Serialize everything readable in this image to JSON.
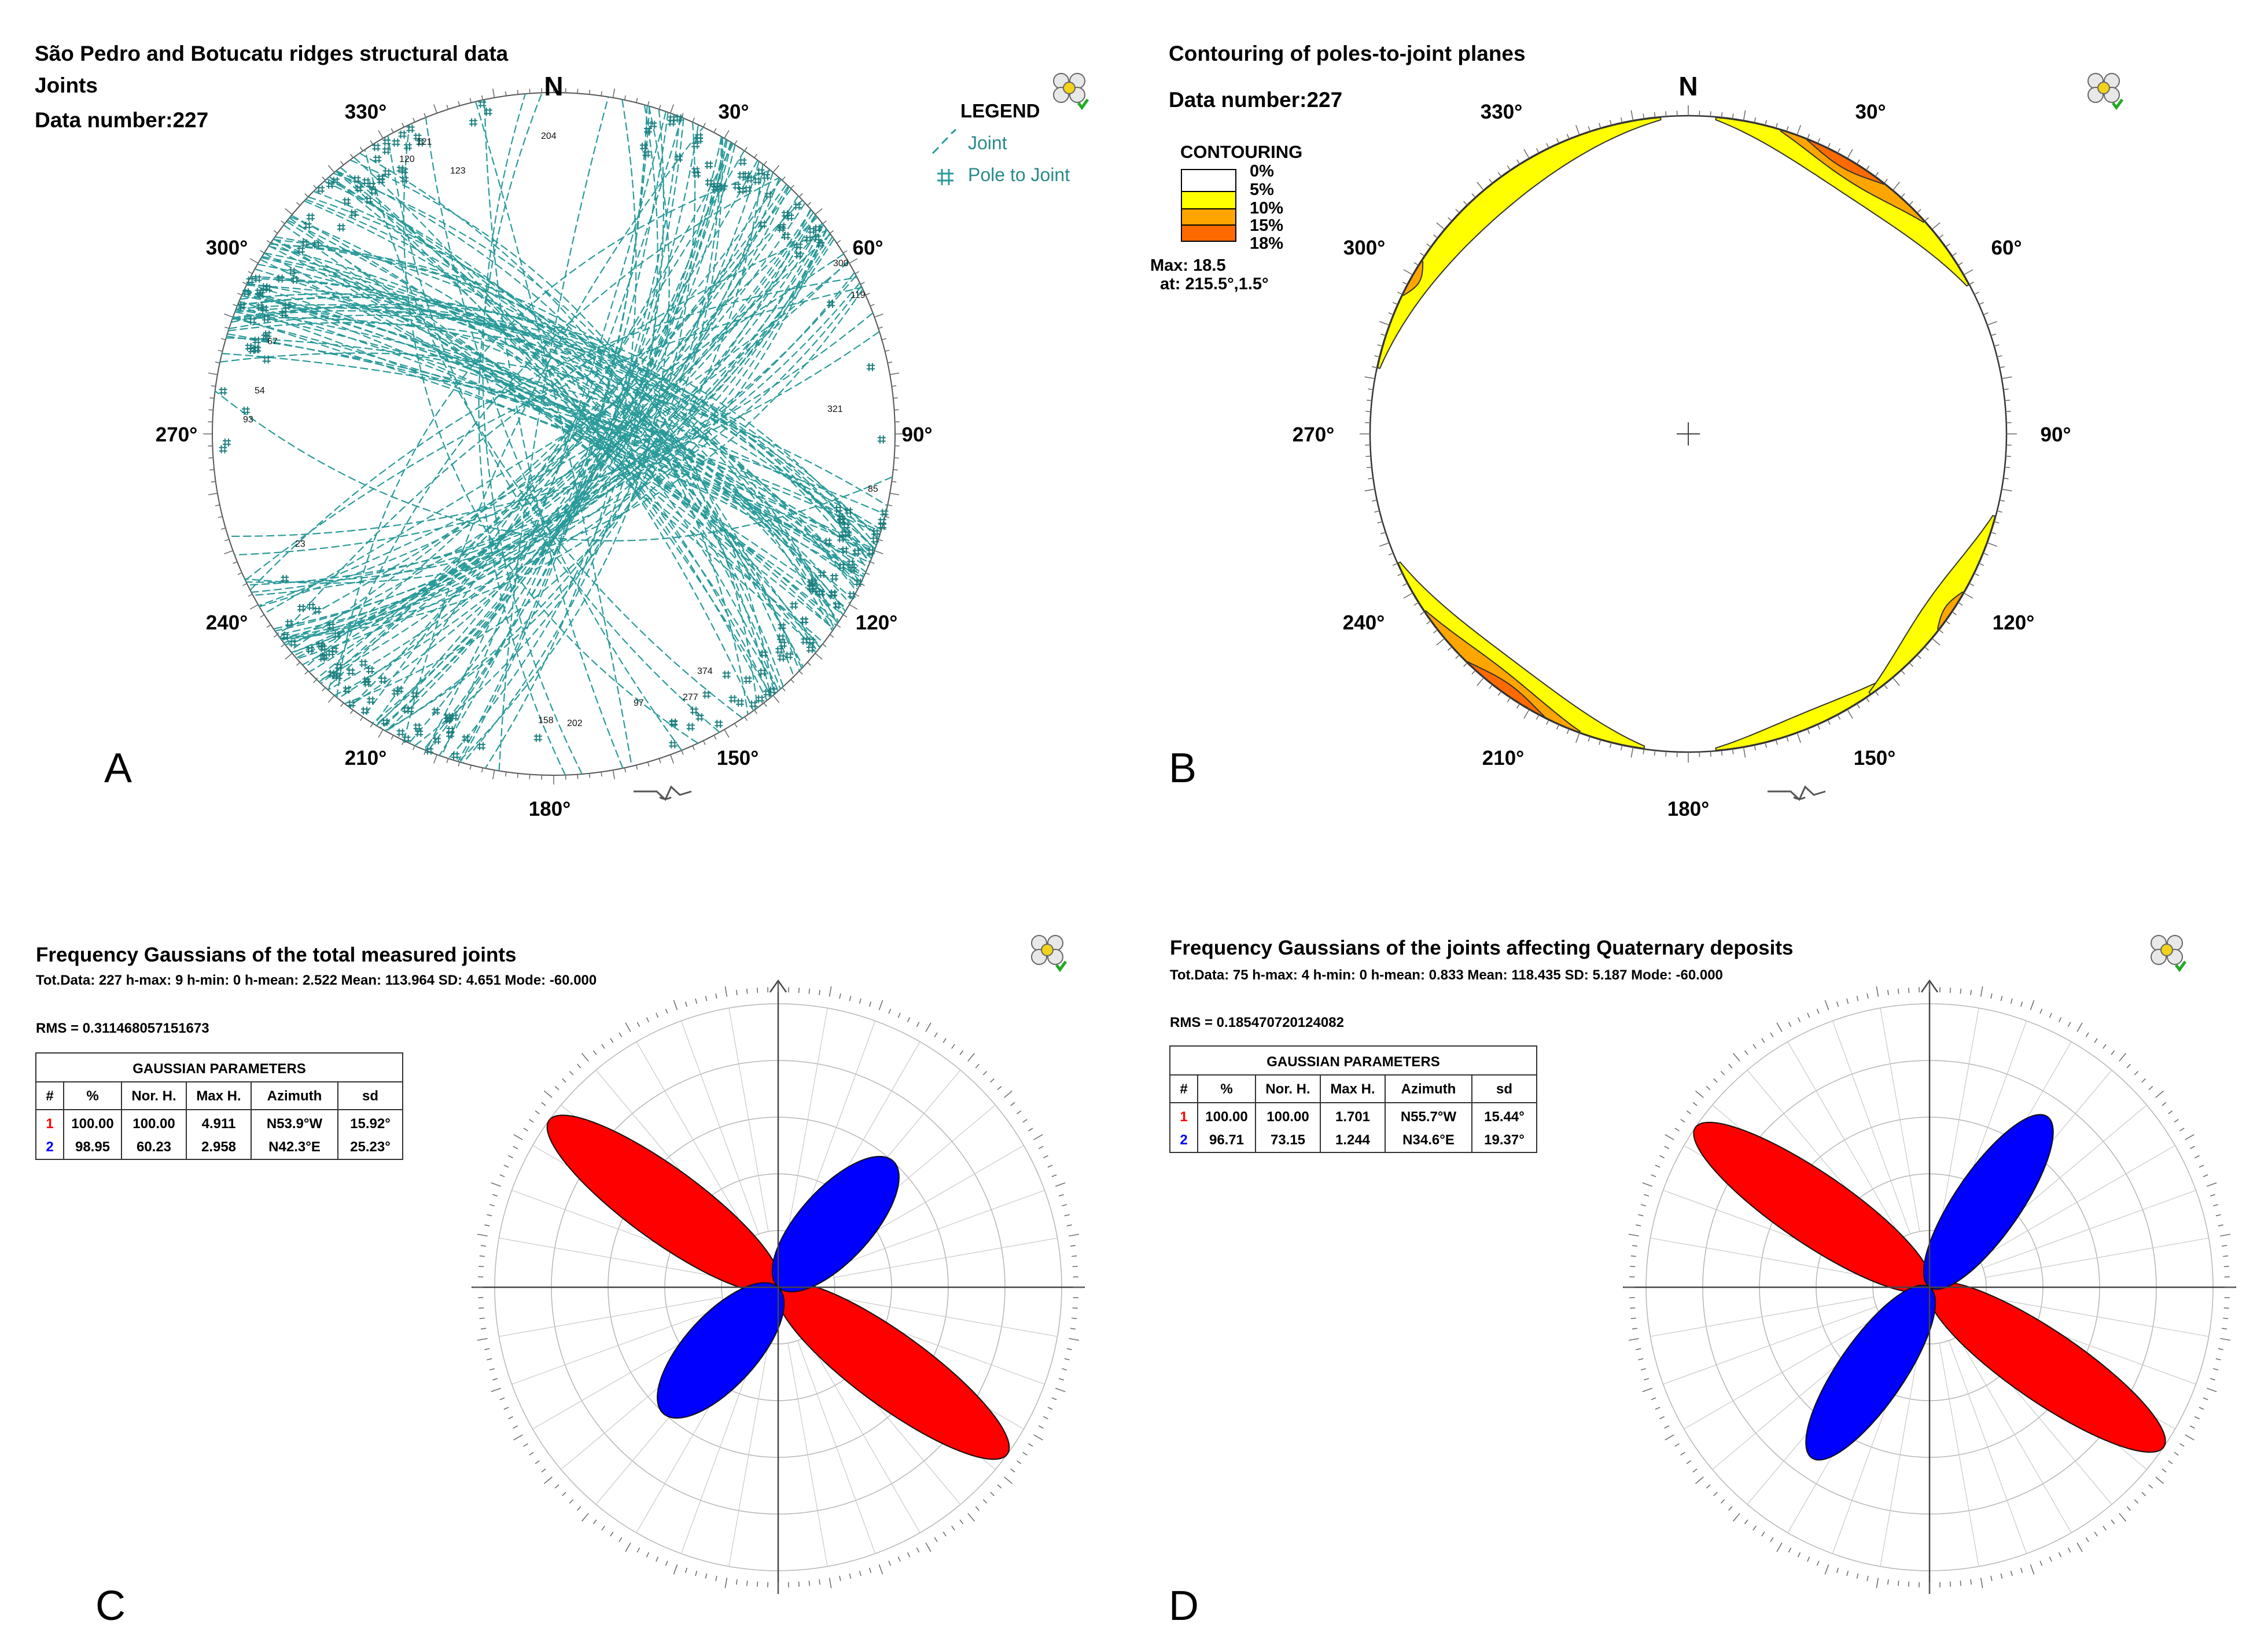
{
  "panels": {
    "A": {
      "letter": "A",
      "title": "São Pedro and Botucatu ridges structural data",
      "subtitle": "Joints",
      "data_number": "Data number:227",
      "north": "N",
      "directions": [
        "330°",
        "30°",
        "60°",
        "300°",
        "270°",
        "90°",
        "240°",
        "120°",
        "210°",
        "150°",
        "180°"
      ],
      "legend_title": "LEGEND",
      "legend_items": [
        "Joint",
        "Pole to Joint"
      ],
      "point_labels": [
        "120",
        "121",
        "123",
        "204",
        "300",
        "119",
        "321",
        "93",
        "23",
        "97",
        "158",
        "202",
        "374",
        "277",
        "85",
        "67",
        "54"
      ]
    },
    "B": {
      "letter": "B",
      "title": "Contouring of poles-to-joint planes",
      "data_number": "Data number:227",
      "north": "N",
      "directions": [
        "330°",
        "30°",
        "60°",
        "300°",
        "270°",
        "90°",
        "240°",
        "120°",
        "210°",
        "150°",
        "180°"
      ],
      "contour_title": "CONTOURING",
      "contour_levels": [
        "0%",
        "5%",
        "10%",
        "15%",
        "18%"
      ],
      "max_label": "Max: 18.5",
      "max_at": "at: 215.5°,1.5°"
    },
    "C": {
      "letter": "C",
      "title": "Frequency Gaussians of the total measured joints",
      "stats": "Tot.Data: 227 h-max: 9 h-min: 0 h-mean: 2.522 Mean: 113.964  SD: 4.651  Mode: -60.000",
      "rms": "RMS = 0.311468057151673",
      "table_title": "GAUSSIAN PARAMETERS",
      "table_headers": [
        "#",
        "%",
        "Nor. H.",
        "Max H.",
        "Azimuth",
        "sd"
      ],
      "table_rows": [
        [
          "1",
          "100.00",
          "100.00",
          "4.911",
          "N53.9°W",
          "15.92°"
        ],
        [
          "2",
          "98.95",
          "60.23",
          "2.958",
          "N42.3°E",
          "25.23°"
        ]
      ]
    },
    "D": {
      "letter": "D",
      "title": "Frequency Gaussians of the joints affecting Quaternary deposits",
      "stats": "Tot.Data: 75 h-max: 4 h-min: 0 h-mean: 0.833 Mean: 118.435  SD: 5.187  Mode: -60.000",
      "rms": "RMS = 0.185470720124082",
      "table_title": "GAUSSIAN PARAMETERS",
      "table_headers": [
        "#",
        "%",
        "Nor. H.",
        "Max H.",
        "Azimuth",
        "sd"
      ],
      "table_rows": [
        [
          "1",
          "100.00",
          "100.00",
          "1.701",
          "N55.7°W",
          "15.44°"
        ],
        [
          "2",
          "96.71",
          "73.15",
          "1.244",
          "N34.6°E",
          "19.37°"
        ]
      ]
    }
  },
  "colors": {
    "joint": "#2a9a9a",
    "contour": [
      "#ffffff",
      "#ffff00",
      "#ffa500",
      "#ff6a00",
      "#dd2a00"
    ],
    "gauss": [
      "#ff0000",
      "#0000ff"
    ]
  },
  "chart_data": [
    {
      "type": "scatter",
      "title": "São Pedro and Botucatu ridges structural data",
      "projection": "stereonet (equal-area, lower hemisphere)",
      "series": [
        {
          "name": "Joint"
        },
        {
          "name": "Pole to Joint"
        }
      ],
      "n": 227
    },
    {
      "type": "heatmap",
      "title": "Contouring of poles-to-joint planes",
      "levels_percent": [
        0,
        5,
        10,
        15,
        18
      ],
      "max": 18.5,
      "max_location_deg": [
        215.5,
        1.5
      ],
      "n": 227
    },
    {
      "type": "rose",
      "title": "Frequency Gaussians of the total measured joints",
      "series": [
        {
          "name": "1",
          "azimuth_deg": 306.1,
          "norm_h": 100.0,
          "max_h": 4.911,
          "sd_deg": 15.92,
          "percent": 100.0
        },
        {
          "name": "2",
          "azimuth_deg": 42.3,
          "norm_h": 60.23,
          "max_h": 2.958,
          "sd_deg": 25.23,
          "percent": 98.95
        }
      ],
      "n": 227,
      "rms": 0.311468057151673
    },
    {
      "type": "rose",
      "title": "Frequency Gaussians of the joints affecting Quaternary deposits",
      "series": [
        {
          "name": "1",
          "azimuth_deg": 304.3,
          "norm_h": 100.0,
          "max_h": 1.701,
          "sd_deg": 15.44,
          "percent": 100.0
        },
        {
          "name": "2",
          "azimuth_deg": 34.6,
          "norm_h": 73.15,
          "max_h": 1.244,
          "sd_deg": 19.37,
          "percent": 96.71
        }
      ],
      "n": 75,
      "rms": 0.185470720124082
    }
  ]
}
